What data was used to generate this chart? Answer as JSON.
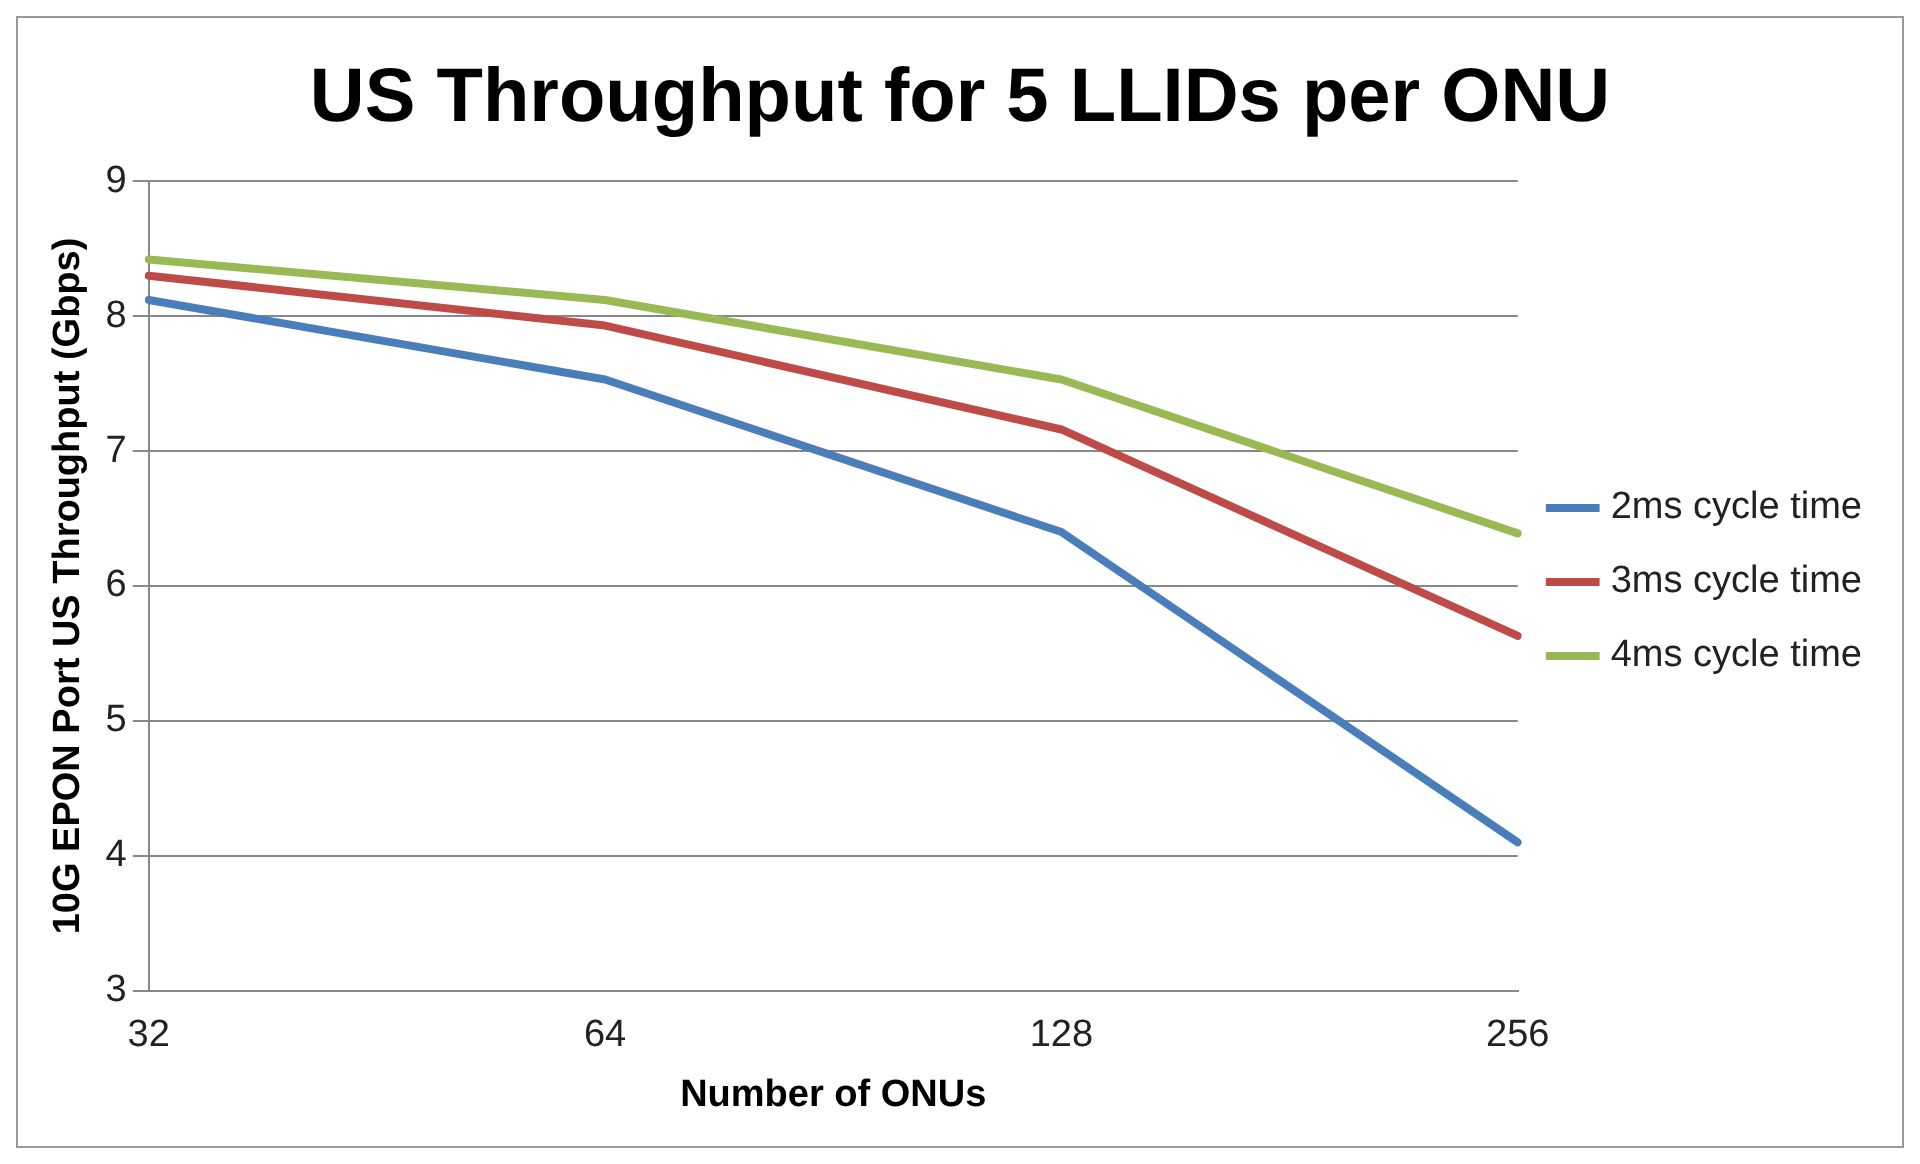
{
  "chart_data": {
    "type": "line",
    "title": "US Throughput for 5 LLIDs per ONU",
    "xlabel": "Number of ONUs",
    "ylabel": "10G EPON Port US Throughput (Gbps)",
    "categories": [
      "32",
      "64",
      "128",
      "256"
    ],
    "series": [
      {
        "name": "2ms cycle time",
        "color": "#4a7ebb",
        "values": [
          8.12,
          7.53,
          6.4,
          4.1
        ]
      },
      {
        "name": "3ms cycle time",
        "color": "#be4b48",
        "values": [
          8.3,
          7.93,
          7.16,
          5.63
        ]
      },
      {
        "name": "4ms cycle time",
        "color": "#98b954",
        "values": [
          8.42,
          8.12,
          7.53,
          6.39
        ]
      }
    ],
    "ylim": [
      3,
      9
    ],
    "yticks": [
      3,
      4,
      5,
      6,
      7,
      8,
      9
    ],
    "grid": "y",
    "legend": "right",
    "marker": "none",
    "line_style": "solid"
  }
}
